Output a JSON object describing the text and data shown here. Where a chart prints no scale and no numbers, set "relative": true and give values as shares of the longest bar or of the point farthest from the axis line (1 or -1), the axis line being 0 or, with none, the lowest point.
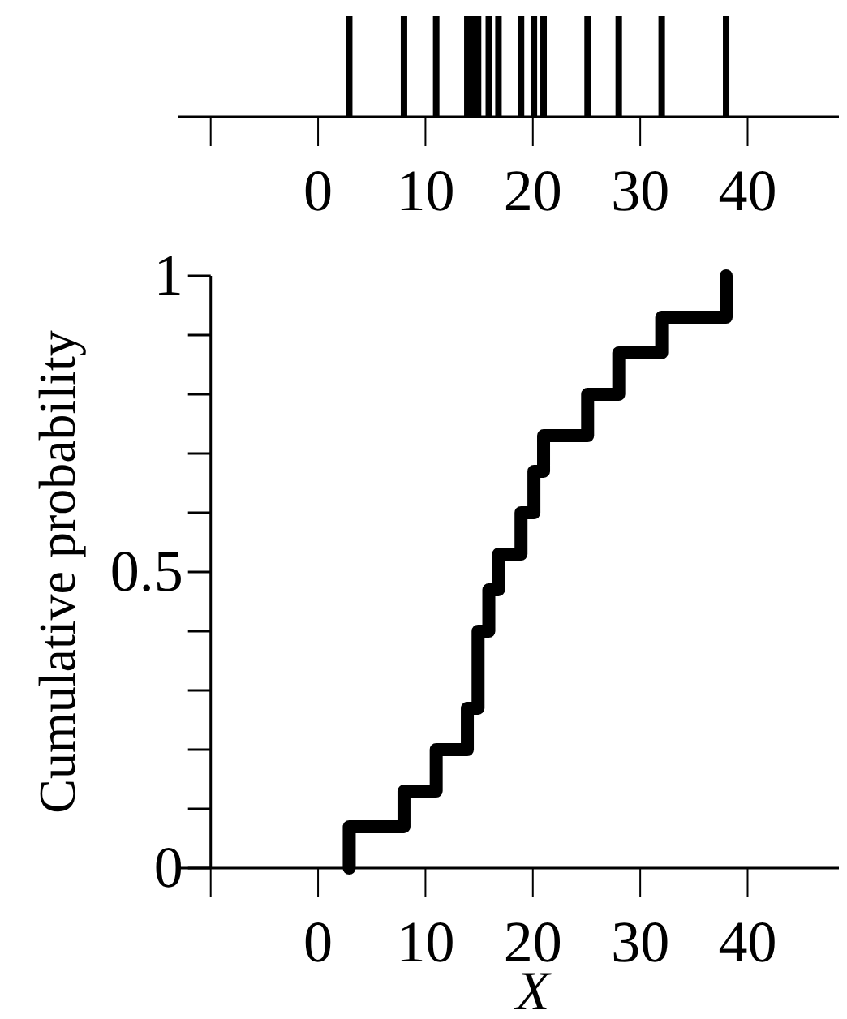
{
  "chart_data": [
    {
      "type": "bar",
      "relative": true,
      "x": [
        2.9,
        8,
        11,
        13.9,
        14.3,
        14.9,
        15.9,
        16.8,
        18.9,
        20.1,
        21,
        25.1,
        28,
        32,
        38
      ],
      "values": [
        1,
        1,
        1,
        1,
        1,
        1,
        1,
        1,
        1,
        1,
        1,
        1,
        1,
        1,
        1
      ],
      "color": "#000000",
      "xlim": [
        -13,
        48.5
      ],
      "xticks": [
        0,
        10,
        20,
        30,
        40
      ],
      "tick_labels": "x"
    },
    {
      "type": "step",
      "x": [
        2.9,
        2.9,
        8,
        11,
        13.9,
        14.9,
        15.9,
        16.8,
        18.9,
        20.1,
        21,
        25.1,
        28,
        32,
        38
      ],
      "values": [
        0,
        0.07,
        0.13,
        0.2,
        0.27,
        0.4,
        0.47,
        0.53,
        0.6,
        0.67,
        0.73,
        0.8,
        0.87,
        0.93,
        1
      ],
      "color": "#000000",
      "xlabel": "X",
      "ylabel": "Cumulative probability",
      "xlim": [
        -13,
        48.5
      ],
      "ylim": [
        0,
        1
      ],
      "xticks": [
        {
          "value": -10,
          "label": null
        },
        0,
        10,
        20,
        30,
        40
      ],
      "yticks": [
        0,
        {
          "value": 0.1,
          "label": null
        },
        {
          "value": 0.2,
          "label": null
        },
        {
          "value": 0.3,
          "label": null
        },
        {
          "value": 0.4,
          "label": null
        },
        0.5,
        {
          "value": 0.6,
          "label": null
        },
        {
          "value": 0.7,
          "label": null
        },
        {
          "value": 0.8,
          "label": null
        },
        {
          "value": 0.9,
          "label": null
        },
        1
      ]
    }
  ]
}
